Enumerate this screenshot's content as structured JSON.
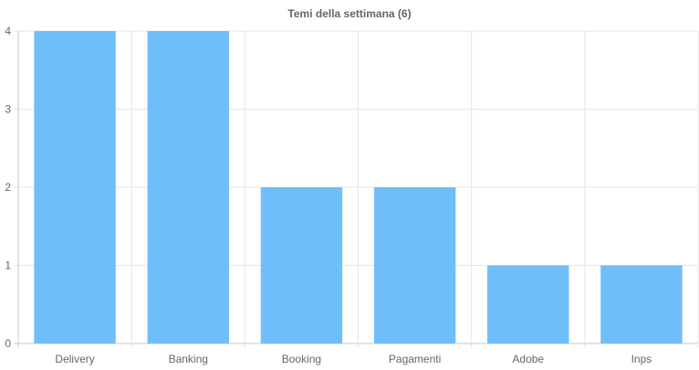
{
  "chart_data": {
    "type": "bar",
    "title": "Temi della settimana (6)",
    "categories": [
      "Delivery",
      "Banking",
      "Booking",
      "Pagamenti",
      "Adobe",
      "Inps"
    ],
    "values": [
      4,
      4,
      2,
      2,
      1,
      1
    ],
    "ylim": [
      0,
      4
    ],
    "yticks": [
      "0",
      "1",
      "2",
      "3",
      "4"
    ],
    "xlabel": "",
    "ylabel": "",
    "grid": true,
    "legend": "none",
    "colors": {
      "bar": "#6fbef9",
      "grid": "#e6e6e6",
      "axis": "#c8c8c8",
      "text": "#666666"
    }
  }
}
